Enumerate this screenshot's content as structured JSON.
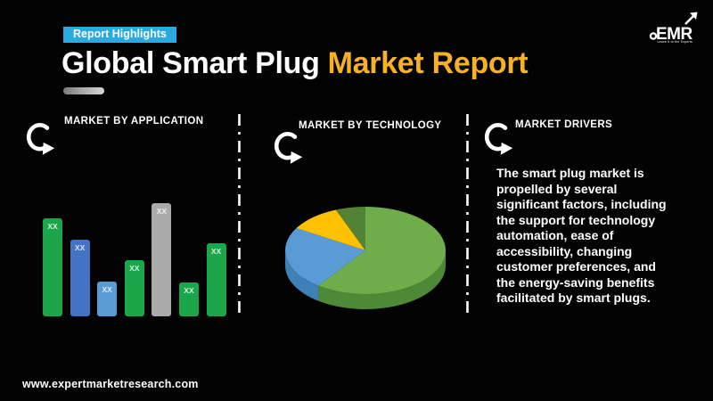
{
  "header": {
    "badge": "Report Highlights",
    "title_white": "Global Smart Plug",
    "title_accent": "Market Report",
    "badge_color": "#29ABE2",
    "accent_color": "#F6B125"
  },
  "logo": {
    "name": "EMR",
    "tagline": "Leave it to the Experts"
  },
  "sections": {
    "application": {
      "heading": "MARKET BY APPLICATION"
    },
    "technology": {
      "heading": "MARKET BY TECHNOLOGY"
    },
    "drivers": {
      "heading": "MARKET DRIVERS",
      "body": "The smart plug market is propelled by several significant factors, including the support for technology automation, ease of accessibility, changing customer preferences, and the energy-saving benefits facilitated by smart plugs."
    }
  },
  "footer": {
    "url": "www.expertmarketresearch.com"
  },
  "chart_data": [
    {
      "type": "bar",
      "title": "MARKET BY APPLICATION",
      "values": [
        110,
        86,
        39,
        63,
        127,
        38,
        82
      ],
      "value_labels": [
        "XX",
        "XX",
        "XX",
        "XX",
        "XX",
        "XX",
        "XX"
      ],
      "colors": [
        "#1CA64C",
        "#4472C4",
        "#5B9BD5",
        "#1CA64C",
        "#ABABAB",
        "#1CA64C",
        "#1CA64C"
      ],
      "ylim": [
        0,
        129
      ],
      "grid": false,
      "legend": "none"
    },
    {
      "type": "pie",
      "title": "MARKET BY TECHNOLOGY",
      "style": "3d",
      "slices": [
        {
          "value": 60,
          "color": "#6FAD4B",
          "side_color": "#4E8A36"
        },
        {
          "value": 23.5,
          "color": "#5B9BD5",
          "side_color": "#4080B8"
        },
        {
          "value": 10.5,
          "color": "#FFC000",
          "side_color": "#C79500"
        },
        {
          "value": 6,
          "color": "#548235",
          "side_color": "#3E6127"
        }
      ],
      "legend": "none"
    }
  ]
}
